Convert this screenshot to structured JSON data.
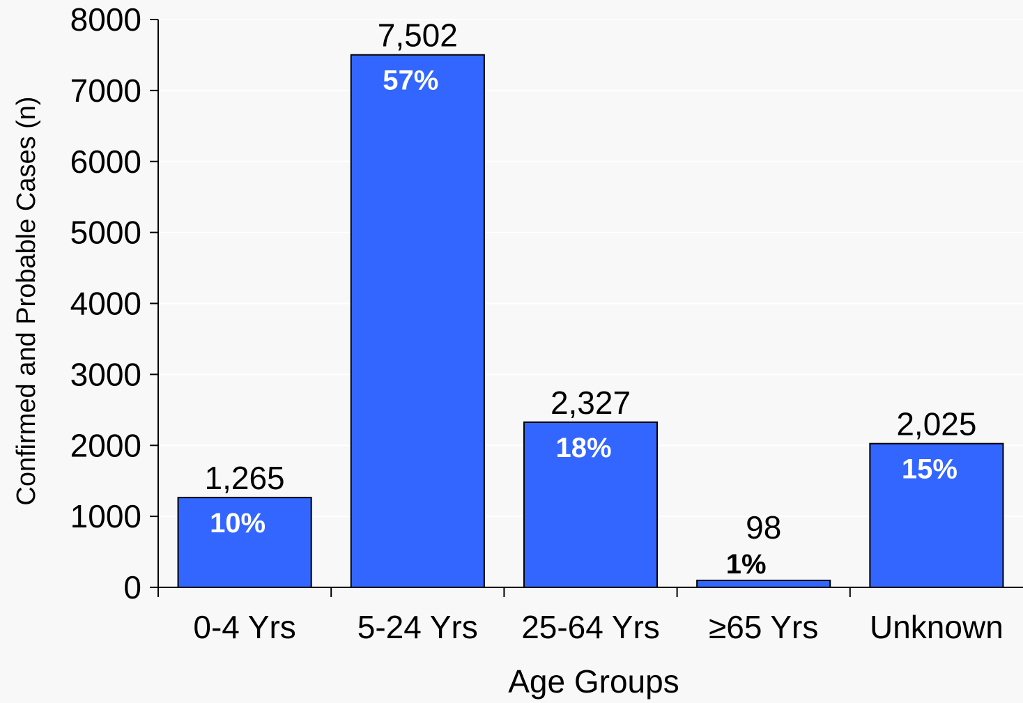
{
  "chart_data": {
    "type": "bar",
    "title": "",
    "xlabel": "Age Groups",
    "ylabel": "Confirmed and Probable Cases (n)",
    "ylim": [
      0,
      8000
    ],
    "yticks": [
      0,
      1000,
      2000,
      3000,
      4000,
      5000,
      6000,
      7000,
      8000
    ],
    "grid": true,
    "categories": [
      "0-4 Yrs",
      "5-24 Yrs",
      "25-64 Yrs",
      "≥65  Yrs",
      "Unknown"
    ],
    "values": [
      1265,
      7502,
      2327,
      98,
      2025
    ],
    "value_labels": [
      "1,265",
      "7,502",
      "2,327",
      "98",
      "2,025"
    ],
    "percent_labels": [
      "10%",
      "57%",
      "18%",
      "1%",
      "15%"
    ],
    "bar_color": "#3366ff",
    "bar_edge_color": "#000000",
    "inside_label_color": "#ffffff",
    "outside_label_color": "#000000",
    "background_color": "#f8f8f8",
    "grid_color": "#ffffff"
  }
}
